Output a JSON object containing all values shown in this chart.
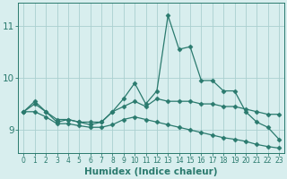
{
  "xlabel": "Humidex (Indice chaleur)",
  "x": [
    0,
    1,
    2,
    3,
    4,
    5,
    6,
    7,
    8,
    9,
    10,
    11,
    12,
    13,
    14,
    15,
    16,
    17,
    18,
    19,
    20,
    21,
    22,
    23
  ],
  "y_top": [
    9.35,
    9.55,
    9.35,
    9.15,
    9.2,
    9.15,
    9.1,
    9.15,
    9.35,
    9.6,
    9.9,
    9.5,
    9.75,
    11.2,
    10.55,
    10.6,
    9.95,
    9.95,
    9.75,
    9.75,
    9.35,
    9.15,
    9.05,
    8.82
  ],
  "y_mid": [
    9.35,
    9.5,
    9.35,
    9.2,
    9.2,
    9.15,
    9.15,
    9.15,
    9.35,
    9.45,
    9.55,
    9.45,
    9.6,
    9.55,
    9.55,
    9.55,
    9.5,
    9.5,
    9.45,
    9.45,
    9.4,
    9.35,
    9.3,
    9.3
  ],
  "y_bot": [
    9.35,
    9.35,
    9.25,
    9.12,
    9.12,
    9.08,
    9.05,
    9.05,
    9.1,
    9.2,
    9.25,
    9.2,
    9.15,
    9.1,
    9.05,
    9.0,
    8.95,
    8.9,
    8.85,
    8.82,
    8.78,
    8.72,
    8.68,
    8.65
  ],
  "line_color": "#2a7a6e",
  "bg_color": "#d8eeee",
  "grid_color": "#aad0d0",
  "label_color": "#2a7a6e",
  "xlim": [
    -0.5,
    23.5
  ],
  "ylim": [
    8.55,
    11.45
  ],
  "yticks": [
    9,
    10,
    11
  ],
  "xticks": [
    0,
    1,
    2,
    3,
    4,
    5,
    6,
    7,
    8,
    9,
    10,
    11,
    12,
    13,
    14,
    15,
    16,
    17,
    18,
    19,
    20,
    21,
    22,
    23
  ],
  "markersize": 2.5,
  "linewidth": 0.9
}
